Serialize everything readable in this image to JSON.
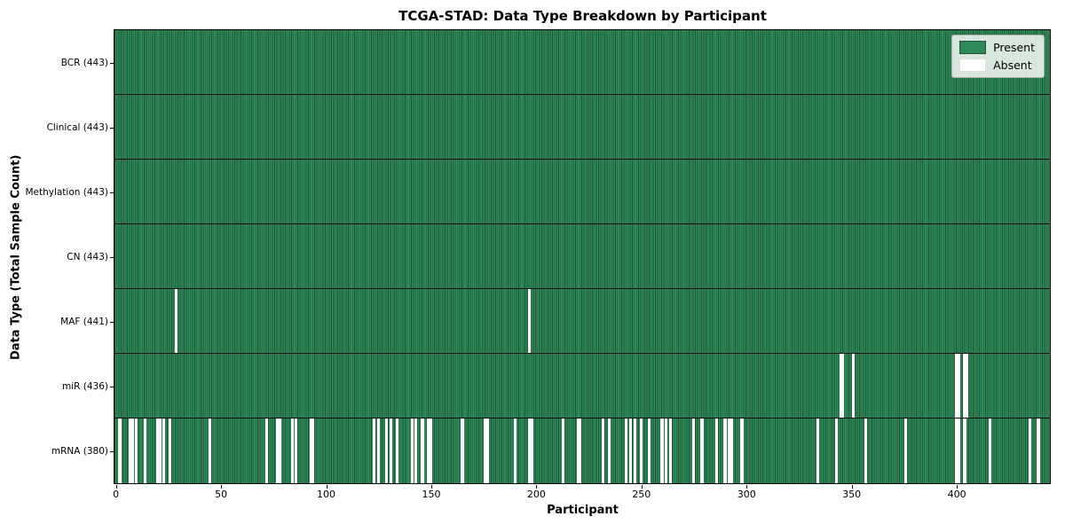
{
  "chart_data": {
    "type": "heatmap",
    "title": "TCGA-STAD: Data Type Breakdown by Participant",
    "xlabel": "Participant",
    "ylabel": "Data Type (Total Sample Count)",
    "n_participants": 443,
    "x_range": [
      -0.5,
      444.5
    ],
    "x_ticks": [
      0,
      50,
      100,
      150,
      200,
      250,
      300,
      350,
      400
    ],
    "grid": false,
    "legend_position": "upper right",
    "legend": [
      {
        "label": "Present",
        "color": "#2e8b57"
      },
      {
        "label": "Absent",
        "color": "#ffffff"
      }
    ],
    "colors": {
      "present": "#2e8b57",
      "present_edge": "#1c5434",
      "absent": "#ffffff",
      "row_separator": "#0d0d0d"
    },
    "rows": [
      {
        "label": "BCR (443)",
        "data_type": "BCR",
        "total": 443,
        "absent": []
      },
      {
        "label": "Clinical (443)",
        "data_type": "Clinical",
        "total": 443,
        "absent": []
      },
      {
        "label": "Methylation (443)",
        "data_type": "Methylation",
        "total": 443,
        "absent": []
      },
      {
        "label": "CN (443)",
        "data_type": "CN",
        "total": 443,
        "absent": []
      },
      {
        "label": "MAF (441)",
        "data_type": "MAF",
        "total": 441,
        "absent": [
          29,
          197
        ]
      },
      {
        "label": "miR (436)",
        "data_type": "miR",
        "total": 436,
        "absent": [
          345,
          346,
          351,
          400,
          401,
          404,
          405
        ]
      },
      {
        "label": "mRNA (380)",
        "data_type": "mRNA",
        "total": 380,
        "absent": [
          2,
          7,
          8,
          10,
          14,
          20,
          21,
          23,
          26,
          45,
          72,
          77,
          78,
          84,
          86,
          93,
          94,
          123,
          125,
          129,
          131,
          134,
          141,
          143,
          146,
          149,
          150,
          165,
          176,
          177,
          190,
          197,
          198,
          213,
          220,
          221,
          232,
          235,
          243,
          245,
          247,
          250,
          254,
          260,
          262,
          264,
          275,
          279,
          286,
          290,
          292,
          293,
          298,
          334,
          343,
          357,
          376,
          400,
          401,
          404,
          416,
          435,
          439
        ]
      }
    ]
  }
}
